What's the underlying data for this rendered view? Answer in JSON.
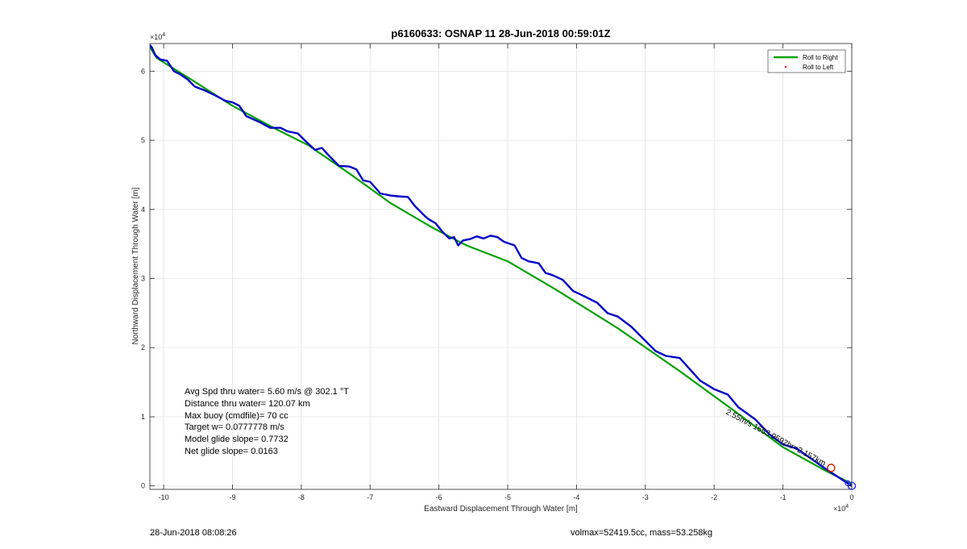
{
  "footer": {
    "left": "28-Jun-2018 08:08:26",
    "right": "volmax=52419.5cc, mass=53.258kg"
  },
  "chart_data": {
    "type": "line",
    "title": "p6160633: OSNAP 11 28-Jun-2018 00:59:01Z",
    "xlabel": "Eastward Displacement Through Water [m]",
    "ylabel": "Northward Displacement Through Water [m]",
    "xlim": [
      -102000,
      0
    ],
    "ylim": [
      -500,
      64000
    ],
    "x_ticks": [
      -100000,
      -90000,
      -80000,
      -70000,
      -60000,
      -50000,
      -40000,
      -30000,
      -20000,
      -10000,
      0
    ],
    "x_tick_labels": [
      "-10",
      "-9",
      "-8",
      "-7",
      "-6",
      "-5",
      "-4",
      "-3",
      "-2",
      "-1",
      "0"
    ],
    "y_ticks": [
      0,
      10000,
      20000,
      30000,
      40000,
      50000,
      60000
    ],
    "y_tick_labels": [
      "0",
      "1",
      "2",
      "3",
      "4",
      "5",
      "6"
    ],
    "x_exponent": "×10",
    "x_exponent_power": "4",
    "y_exponent": "×10",
    "y_exponent_power": "4",
    "grid": true,
    "legend_position": "top-right",
    "legend": [
      {
        "label": "Roll to Right",
        "color": "#00a000",
        "style": "line"
      },
      {
        "label": "Roll to Left",
        "color": "#ff0000",
        "style": "dot"
      }
    ],
    "annotations": [
      "Avg Spd thru water=  5.60 m/s @ 302.1 °T",
      "Distance thru water= 120.07 km",
      "Max buoy (cmdfile)= 70 cc",
      "Target w= 0.0777778 m/s",
      "Model glide slope= 0.7732",
      "Net glide slope= 0.0163"
    ],
    "rotated_label": "2.55m/s 1653.9592hr=2.157km",
    "series": [
      {
        "color": "#00a000",
        "x": [
          0,
          -4000,
          -10000,
          -17000,
          -25000,
          -34000,
          -43000,
          -50000,
          -56000,
          -61000,
          -67000,
          -73000,
          -79000,
          -84000,
          -90000,
          -96000,
          -101000,
          -102000
        ],
        "y": [
          300,
          2300,
          5600,
          10800,
          16600,
          22800,
          28400,
          32500,
          34800,
          37400,
          40900,
          45200,
          49300,
          51800,
          55000,
          58800,
          61900,
          63500
        ]
      },
      {
        "color": "#0000c8",
        "x": [
          0,
          -2000,
          -4000,
          -6000,
          -8000,
          -10000,
          -12000,
          -14000,
          -16500,
          -18000,
          -20000,
          -22000,
          -25000,
          -27000,
          -28500,
          -30000,
          -32000,
          -34000,
          -35500,
          -37000,
          -39000,
          -40500,
          -42000,
          -43500,
          -44500,
          -45500,
          -47000,
          -48000,
          -49000,
          -50500,
          -51500,
          -52500,
          -53500,
          -54500,
          -55500,
          -56500,
          -57200,
          -57800,
          -58500,
          -59500,
          -60500,
          -61500,
          -62000,
          -63500,
          -64500,
          -66000,
          -67000,
          -68500,
          -70000,
          -71000,
          -72000,
          -73000,
          -74500,
          -76000,
          -77000,
          -78000,
          -79500,
          -80500,
          -82000,
          -83000,
          -84500,
          -86000,
          -88000,
          -89000,
          -90000,
          -91000,
          -92500,
          -94000,
          -95500,
          -96500,
          -97500,
          -98500,
          -99500,
          -100500,
          -101200,
          -101700,
          -102000
        ],
        "y": [
          0,
          1300,
          2600,
          4000,
          5400,
          6000,
          7500,
          9600,
          11400,
          13200,
          14000,
          15200,
          18500,
          18800,
          19500,
          21000,
          23000,
          24500,
          25000,
          26500,
          27500,
          28200,
          29800,
          30500,
          30800,
          32200,
          32500,
          33000,
          34800,
          35300,
          36000,
          36200,
          35800,
          36100,
          35700,
          35500,
          34800,
          36000,
          35800,
          36800,
          38000,
          38600,
          39000,
          40500,
          41800,
          41900,
          42000,
          42300,
          44000,
          44200,
          45800,
          46200,
          46300,
          47800,
          48900,
          48600,
          50000,
          51000,
          51300,
          51800,
          51800,
          52600,
          53500,
          55000,
          55500,
          55700,
          56500,
          57200,
          57800,
          58800,
          59500,
          60000,
          61500,
          61700,
          62300,
          63400,
          63800
        ]
      }
    ]
  }
}
